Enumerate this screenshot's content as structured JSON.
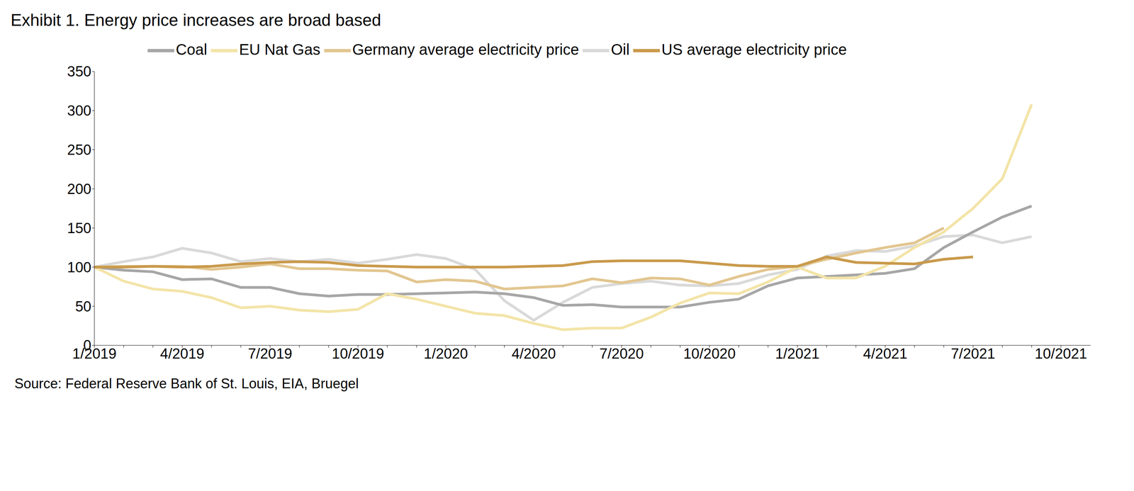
{
  "chart_data": {
    "type": "line",
    "title": "Exhibit 1. Energy price increases are broad based",
    "source": "Source: Federal Reserve Bank of St. Louis, EIA, Bruegel",
    "categories": [
      "1/2019",
      null,
      null,
      "4/2019",
      null,
      null,
      "7/2019",
      null,
      null,
      "10/2019",
      null,
      null,
      "1/2020",
      null,
      null,
      "4/2020",
      null,
      null,
      "7/2020",
      null,
      null,
      "10/2020",
      null,
      null,
      "1/2021",
      null,
      null,
      "4/2021",
      null,
      null,
      "7/2021",
      null,
      null,
      "10/2021"
    ],
    "series": [
      {
        "name": "Oil",
        "color": "#d9d9d9",
        "values": [
          100,
          107,
          113,
          124,
          118,
          107,
          111,
          107,
          110,
          105,
          110,
          116,
          111,
          97,
          57,
          32,
          55,
          74,
          79,
          82,
          77,
          76,
          79,
          90,
          97,
          114,
          121,
          120,
          127,
          139,
          141,
          131,
          139,
          null
        ]
      },
      {
        "name": "Coal",
        "color": "#a6a6a6",
        "values": [
          100,
          96,
          94,
          84,
          85,
          74,
          74,
          66,
          63,
          65,
          65,
          66,
          67,
          68,
          66,
          61,
          51,
          52,
          49,
          49,
          49,
          55,
          59,
          76,
          86,
          88,
          90,
          92,
          98,
          125,
          145,
          164,
          178,
          null
        ]
      },
      {
        "name": "EU Nat Gas",
        "color": "#f3e4a8",
        "values": [
          100,
          82,
          72,
          69,
          61,
          48,
          50,
          45,
          43,
          46,
          66,
          59,
          50,
          41,
          38,
          28,
          20,
          22,
          22,
          36,
          54,
          67,
          66,
          81,
          100,
          86,
          86,
          101,
          125,
          145,
          175,
          213,
          308,
          null
        ]
      },
      {
        "name": "Germany average electricity price",
        "color": "#e2c690",
        "values": [
          100,
          101,
          101,
          101,
          97,
          100,
          104,
          98,
          98,
          96,
          95,
          81,
          84,
          82,
          72,
          74,
          76,
          85,
          80,
          86,
          85,
          77,
          88,
          97,
          101,
          110,
          118,
          125,
          131,
          150,
          null,
          null,
          null,
          null
        ]
      },
      {
        "name": "US average electricity price",
        "color": "#c99a4c",
        "values": [
          100,
          100,
          101,
          100,
          101,
          104,
          106,
          107,
          106,
          102,
          101,
          100,
          100,
          100,
          100,
          101,
          102,
          107,
          108,
          108,
          108,
          105,
          102,
          101,
          101,
          113,
          106,
          105,
          104,
          110,
          113,
          null,
          null,
          null
        ]
      }
    ],
    "ylim": [
      0,
      350
    ],
    "yticks": [
      0,
      50,
      100,
      150,
      200,
      250,
      300,
      350
    ],
    "grid": false,
    "legend": "top",
    "line_style": "solid"
  }
}
